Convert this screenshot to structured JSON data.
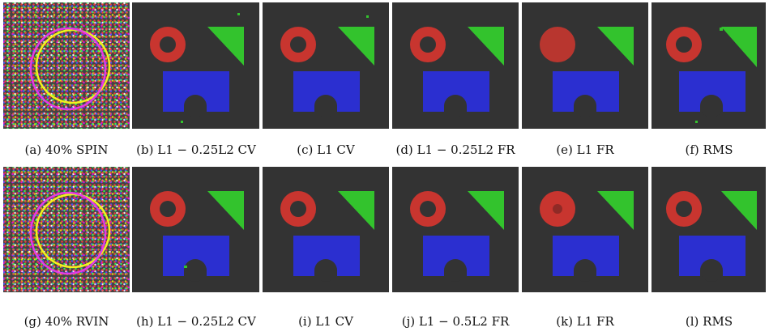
{
  "figure": {
    "colors": {
      "background": "#333333",
      "red": "#c8352f",
      "green": "#33c32d",
      "blue": "#2b2fd0",
      "contour_yellow": "#f2f21c",
      "contour_magenta": "#e23ae6"
    },
    "rows": [
      {
        "panels": [
          {
            "id": "a",
            "caption": "(a) 40% SPIN",
            "kind": "noisy"
          },
          {
            "id": "b",
            "caption": "(b) L1 − 0.25L2 CV",
            "kind": "seg_spin_b"
          },
          {
            "id": "c",
            "caption": "(c) L1 CV",
            "kind": "seg_spin_c"
          },
          {
            "id": "d",
            "caption": "(d) L1 − 0.25L2 FR",
            "kind": "seg_clean"
          },
          {
            "id": "e",
            "caption": "(e) L1 FR",
            "kind": "seg_filled"
          },
          {
            "id": "f",
            "caption": "(f) RMS",
            "kind": "seg_spin_f"
          }
        ]
      },
      {
        "panels": [
          {
            "id": "g",
            "caption": "(g) 40% RVIN",
            "kind": "noisy"
          },
          {
            "id": "h",
            "caption": "(h) L1 − 0.25L2 CV",
            "kind": "seg_rvin_h"
          },
          {
            "id": "i",
            "caption": "(i) L1 CV",
            "kind": "seg_clean"
          },
          {
            "id": "j",
            "caption": "(j) L1 − 0.5L2 FR",
            "kind": "seg_clean"
          },
          {
            "id": "k",
            "caption": "(k) L1 FR",
            "kind": "seg_hole_small"
          },
          {
            "id": "l",
            "caption": "(l) RMS",
            "kind": "seg_clean"
          }
        ]
      }
    ]
  }
}
